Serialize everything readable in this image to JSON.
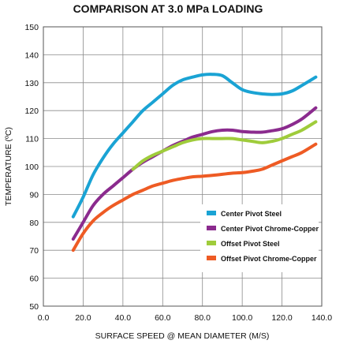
{
  "chart_data": {
    "type": "line",
    "title": "COMPARISON AT 3.0 MPa LOADING",
    "xlabel": "SURFACE SPEED @ MEAN DIAMETER (M/S)",
    "ylabel": "TEMPERATURE (ºC)",
    "xlim": [
      0,
      140
    ],
    "ylim": [
      50,
      150
    ],
    "xticks": [
      "0.0",
      "20.0",
      "40.0",
      "60.0",
      "80.0",
      "100.0",
      "120.0",
      "140.0"
    ],
    "yticks": [
      "50",
      "60",
      "70",
      "80",
      "90",
      "100",
      "110",
      "120",
      "130",
      "140",
      "150"
    ],
    "grid": true,
    "legend_position": "bottom-right",
    "series": [
      {
        "name": "Center Pivot Steel",
        "color": "#1aa3d4",
        "x": [
          15,
          20,
          25,
          30,
          35,
          40,
          45,
          50,
          55,
          60,
          65,
          70,
          75,
          80,
          85,
          90,
          95,
          100,
          105,
          110,
          115,
          120,
          125,
          130,
          137
        ],
        "y": [
          82,
          89,
          97,
          103,
          108,
          112,
          116,
          120,
          123,
          126,
          129,
          131,
          132,
          132.8,
          133,
          132.5,
          130,
          127.5,
          126.5,
          126,
          125.8,
          126,
          127,
          129,
          132
        ]
      },
      {
        "name": "Center Pivot Chrome-Copper",
        "color": "#8b2b8e",
        "x": [
          15,
          20,
          25,
          30,
          35,
          40,
          45,
          50,
          55,
          60,
          65,
          70,
          75,
          80,
          85,
          90,
          95,
          100,
          105,
          110,
          115,
          120,
          125,
          130,
          137
        ],
        "y": [
          74,
          80,
          86,
          90,
          93,
          96,
          99,
          101.5,
          103.5,
          105.5,
          107.5,
          109,
          110.5,
          111.5,
          112.5,
          113,
          113,
          112.5,
          112.3,
          112.3,
          112.8,
          113.5,
          115,
          117,
          121
        ]
      },
      {
        "name": "Offset Pivot Steel",
        "color": "#9fcc3b",
        "x": [
          45,
          50,
          55,
          60,
          65,
          70,
          75,
          80,
          85,
          90,
          95,
          100,
          105,
          110,
          115,
          120,
          125,
          130,
          137
        ],
        "y": [
          99,
          102,
          104,
          105.5,
          107,
          108.5,
          109.5,
          110,
          110,
          110,
          110,
          109.5,
          109,
          108.5,
          109,
          110,
          111.5,
          113,
          116
        ]
      },
      {
        "name": "Offset Pivot Chrome-Copper",
        "color": "#ee5b24",
        "x": [
          15,
          20,
          25,
          30,
          35,
          40,
          45,
          50,
          55,
          60,
          65,
          70,
          75,
          80,
          85,
          90,
          95,
          100,
          105,
          110,
          115,
          120,
          125,
          130,
          137
        ],
        "y": [
          70,
          76,
          80.5,
          83.5,
          86,
          88,
          90,
          91.5,
          93,
          94,
          95,
          95.7,
          96.3,
          96.5,
          96.8,
          97.2,
          97.6,
          97.8,
          98.3,
          99,
          100.5,
          102,
          103.5,
          105,
          108
        ]
      }
    ]
  }
}
